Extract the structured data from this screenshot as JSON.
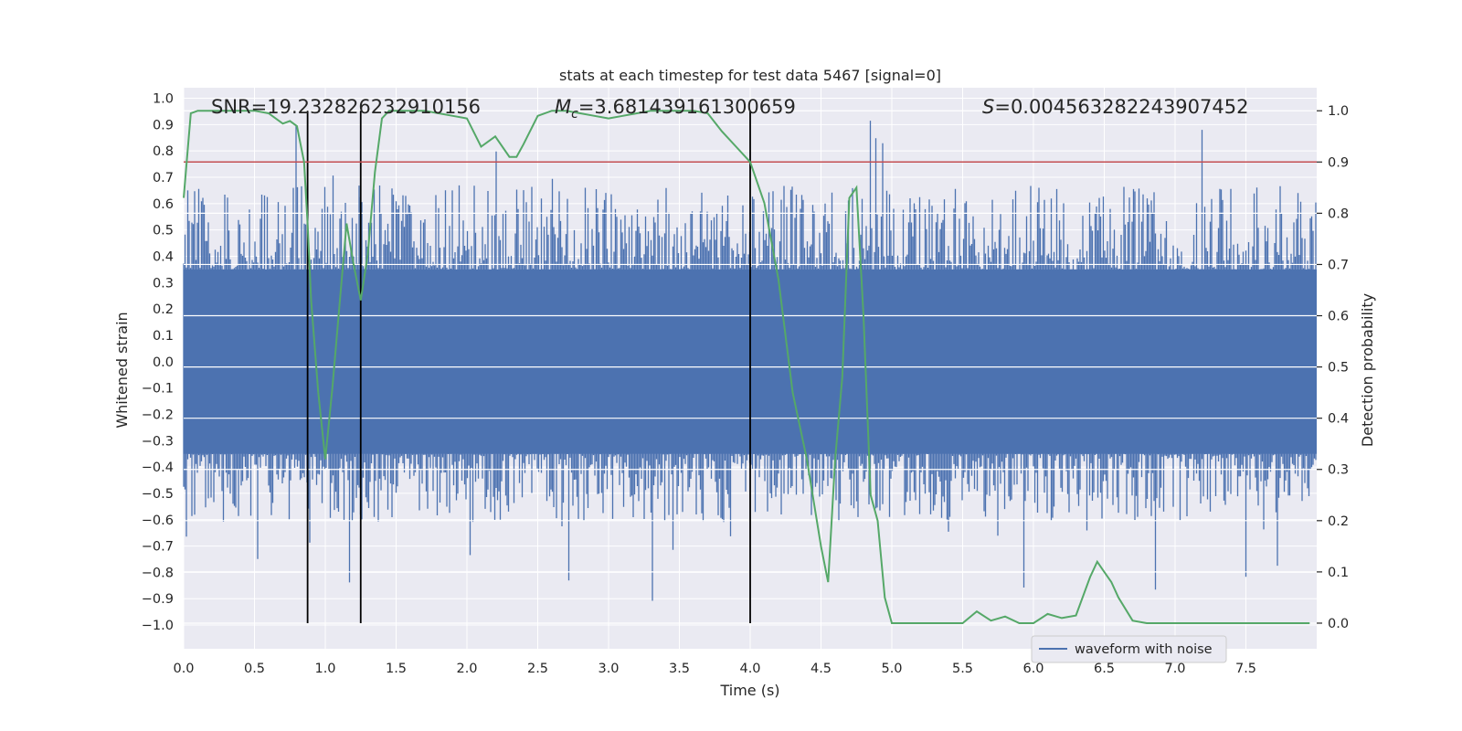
{
  "chart_data": {
    "type": "line",
    "title": "stats at each timestep for test data 5467 [signal=0]",
    "xlabel": "Time (s)",
    "ylabel_left": "Whitened strain",
    "ylabel_right": "Detection probability",
    "xlim": [
      0.0,
      8.0
    ],
    "ylim_left": [
      -1.09,
      1.04
    ],
    "ylim_right": [
      -0.05,
      1.045
    ],
    "x_ticks": [
      "0.0",
      "0.5",
      "1.0",
      "1.5",
      "2.0",
      "2.5",
      "3.0",
      "3.5",
      "4.0",
      "4.5",
      "5.0",
      "5.5",
      "6.0",
      "6.5",
      "7.0",
      "7.5"
    ],
    "y_left_ticks": [
      "1.0",
      "0.9",
      "0.8",
      "0.7",
      "0.6",
      "0.5",
      "0.4",
      "0.3",
      "0.2",
      "0.1",
      "0.0",
      "−0.1",
      "−0.2",
      "−0.3",
      "−0.4",
      "−0.5",
      "−0.6",
      "−0.7",
      "−0.8",
      "−0.9",
      "−1.0"
    ],
    "y_right_ticks": [
      "1.0",
      "0.9",
      "0.8",
      "0.7",
      "0.6",
      "0.5",
      "0.4",
      "0.3",
      "0.2",
      "0.1",
      "0.0"
    ],
    "annotations": {
      "snr": "SNR=19.232826232910156",
      "mc_symbol": "M",
      "mc_sub": "c",
      "mc_value": "=3.681439161300659",
      "s_symbol": "S",
      "s_value": "=0.004563282243907452"
    },
    "threshold": 0.9,
    "vertical_lines": [
      0.875,
      1.25,
      4.0
    ],
    "legend": {
      "label": "waveform with noise",
      "loc": "lower-right"
    },
    "series": [
      {
        "name": "waveform with noise",
        "axis": "left",
        "color": "#4c72b0",
        "style": "noise",
        "core_amplitude": 0.35,
        "spike_max": 0.95
      },
      {
        "name": "detection probability",
        "axis": "right",
        "color": "#55a868",
        "x": [
          0.0,
          0.05,
          0.1,
          0.2,
          0.3,
          0.4,
          0.5,
          0.6,
          0.7,
          0.75,
          0.8,
          0.85,
          0.875,
          0.9,
          0.95,
          1.0,
          1.05,
          1.1,
          1.15,
          1.2,
          1.25,
          1.3,
          1.35,
          1.4,
          1.45,
          1.5,
          1.6,
          1.7,
          1.8,
          1.9,
          2.0,
          2.1,
          2.2,
          2.3,
          2.35,
          2.4,
          2.5,
          2.6,
          2.7,
          2.8,
          2.9,
          3.0,
          3.1,
          3.2,
          3.3,
          3.4,
          3.5,
          3.6,
          3.7,
          3.8,
          3.9,
          4.0,
          4.1,
          4.2,
          4.3,
          4.4,
          4.5,
          4.55,
          4.6,
          4.65,
          4.7,
          4.75,
          4.8,
          4.85,
          4.9,
          4.95,
          5.0,
          5.1,
          5.2,
          5.3,
          5.4,
          5.5,
          5.6,
          5.7,
          5.8,
          5.9,
          6.0,
          6.1,
          6.2,
          6.3,
          6.4,
          6.45,
          6.5,
          6.55,
          6.6,
          6.7,
          6.8,
          7.0,
          7.2,
          7.4,
          7.6,
          7.8,
          7.95
        ],
        "y": [
          0.83,
          0.995,
          1.0,
          1.0,
          1.0,
          1.0,
          1.0,
          0.995,
          0.975,
          0.98,
          0.97,
          0.9,
          0.78,
          0.63,
          0.45,
          0.32,
          0.46,
          0.62,
          0.78,
          0.7,
          0.63,
          0.72,
          0.88,
          0.985,
          1.0,
          1.0,
          1.0,
          1.0,
          0.995,
          0.99,
          0.985,
          0.93,
          0.95,
          0.91,
          0.91,
          0.935,
          0.99,
          1.0,
          1.0,
          0.995,
          0.99,
          0.985,
          0.99,
          0.995,
          1.0,
          1.0,
          1.0,
          1.0,
          0.995,
          0.96,
          0.93,
          0.9,
          0.82,
          0.67,
          0.45,
          0.32,
          0.15,
          0.08,
          0.32,
          0.48,
          0.83,
          0.85,
          0.6,
          0.25,
          0.2,
          0.05,
          0.0,
          0.0,
          0.0,
          0.0,
          0.0,
          0.0,
          0.023,
          0.005,
          0.013,
          0.0,
          0.0,
          0.018,
          0.01,
          0.015,
          0.09,
          0.12,
          0.1,
          0.08,
          0.05,
          0.005,
          0.0,
          0.0,
          0.0,
          0.0,
          0.0,
          0.0,
          0.0
        ]
      }
    ]
  }
}
